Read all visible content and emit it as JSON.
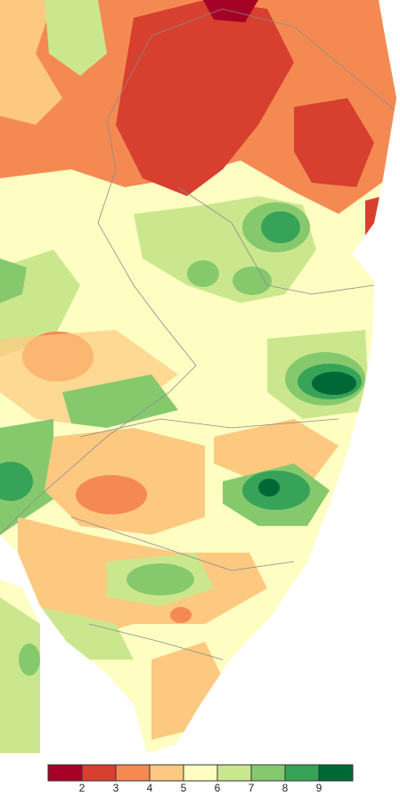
{
  "legend": {
    "colors": [
      "#a50026",
      "#d73f2f",
      "#f48a52",
      "#fdc980",
      "#fefec2",
      "#cbe78e",
      "#86c96d",
      "#37a358",
      "#006837"
    ],
    "labels": [
      2,
      3,
      4,
      5,
      6,
      7,
      8,
      9
    ]
  }
}
